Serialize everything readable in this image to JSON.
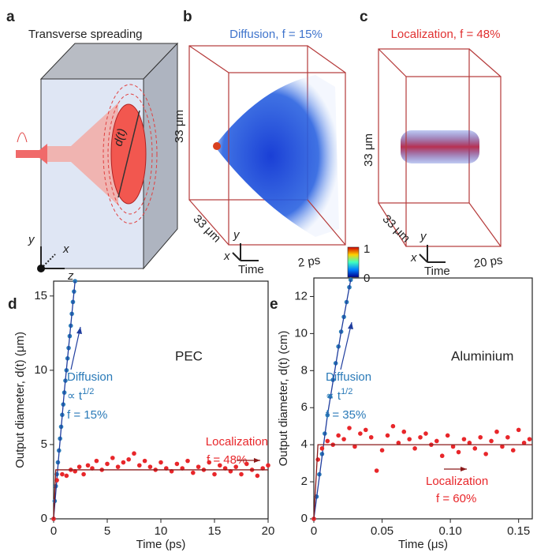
{
  "panels": {
    "a": {
      "letter": "a",
      "title": "Transverse spreading",
      "spot": "d(t)",
      "axes": [
        "y",
        "x",
        "z"
      ]
    },
    "b": {
      "letter": "b",
      "title": "Diffusion, f = 15%",
      "height": "33 μm",
      "depth": "33 μm",
      "axes": [
        "y",
        "x",
        "Time"
      ],
      "duration": "2 ps"
    },
    "c": {
      "letter": "c",
      "title": "Localization, f = 48%",
      "height": "33 μm",
      "depth": "33 μm",
      "axes": [
        "y",
        "x",
        "Time"
      ],
      "duration": "20 ps"
    },
    "colorbar": {
      "max": "1",
      "min": "0"
    }
  },
  "chart_data": [
    {
      "type": "scatter",
      "letter": "d",
      "material": "PEC",
      "xlabel": "Time (ps)",
      "ylabel": "Output diameter, d(t) (μm)",
      "xlim": [
        0,
        20
      ],
      "xticks": [
        0,
        5,
        10,
        15,
        20
      ],
      "ylim": [
        0,
        16
      ],
      "yticks": [
        0,
        5,
        10,
        15
      ],
      "series": [
        {
          "name": "Diffusion",
          "color": "#2a7ab8",
          "note": {
            "text": "∝ t",
            "sup": "1/2"
          },
          "fraction": "f = 15%",
          "x": [
            0,
            0.1,
            0.2,
            0.3,
            0.4,
            0.5,
            0.6,
            0.7,
            0.8,
            0.9,
            1.0,
            1.1,
            1.2,
            1.3,
            1.4,
            1.5,
            1.6,
            1.7,
            1.8,
            1.9,
            2.0
          ],
          "values": [
            0,
            1.2,
            2.2,
            3.0,
            3.8,
            4.6,
            5.4,
            6.2,
            7.0,
            7.7,
            8.5,
            9.3,
            10.0,
            10.8,
            11.5,
            12.3,
            13.0,
            13.8,
            14.6,
            15.3,
            16.0
          ],
          "fit_color": "#1f3d9e",
          "fit_x": [
            0,
            0.5,
            1,
            1.5,
            2
          ],
          "fit_values": [
            0,
            4.4,
            8.6,
            12.3,
            16
          ]
        },
        {
          "name": "Localization",
          "color": "#e8262a",
          "fraction": "f = 48%",
          "x": [
            0,
            0.3,
            0.8,
            1.2,
            1.6,
            2,
            2.4,
            2.8,
            3.2,
            3.6,
            4,
            4.5,
            5,
            5.5,
            6,
            6.5,
            7,
            7.5,
            8,
            8.5,
            9,
            9.5,
            10,
            10.5,
            11,
            11.5,
            12,
            12.5,
            13,
            13.5,
            14,
            14.5,
            15,
            15.5,
            16,
            16.5,
            17,
            17.5,
            18,
            18.5,
            19,
            19.5,
            20
          ],
          "values": [
            0,
            2.6,
            3.0,
            2.9,
            3.3,
            3.2,
            3.5,
            3.0,
            3.6,
            3.4,
            3.9,
            3.3,
            3.7,
            4.1,
            3.5,
            3.8,
            4.0,
            4.4,
            3.6,
            3.9,
            3.5,
            3.3,
            3.8,
            3.4,
            3.2,
            3.7,
            3.4,
            3.9,
            3.1,
            3.5,
            3.3,
            3.8,
            3.0,
            3.6,
            3.4,
            3.2,
            3.5,
            3.0,
            3.7,
            3.3,
            2.9,
            3.4,
            3.6
          ],
          "fit_color": "#8b1a1a",
          "fit_x": [
            0,
            0.2,
            20
          ],
          "fit_values": [
            0,
            3.3,
            3.3
          ]
        }
      ]
    },
    {
      "type": "scatter",
      "letter": "e",
      "material": "Aluminium",
      "xlabel": "Time (μs)",
      "ylabel": "Output diameter, d(t) (cm)",
      "xlim": [
        0,
        0.16
      ],
      "xticks": [
        0,
        0.05,
        {
          "value": 0.1,
          "label": "0.10"
        },
        0.15
      ],
      "ylim": [
        0,
        13
      ],
      "yticks": [
        0,
        2,
        4,
        6,
        8,
        10,
        12
      ],
      "series": [
        {
          "name": "Diffusion",
          "color": "#2a7ab8",
          "note": {
            "text": "∝ t",
            "sup": "1/2"
          },
          "fraction": "f = 35%",
          "x": [
            0,
            0.002,
            0.004,
            0.006,
            0.008,
            0.01,
            0.012,
            0.014,
            0.016,
            0.018,
            0.02,
            0.022,
            0.024,
            0.026,
            0.027
          ],
          "values": [
            0,
            1.2,
            2.4,
            3.5,
            4.6,
            5.6,
            6.6,
            7.5,
            8.4,
            9.3,
            10.1,
            10.9,
            11.7,
            12.5,
            12.9
          ],
          "fit_color": "#1f3d9e",
          "fit_x": [
            0,
            0.01,
            0.02,
            0.027
          ],
          "fit_values": [
            0,
            5.6,
            10.1,
            12.9
          ]
        },
        {
          "name": "Localization",
          "color": "#e8262a",
          "fraction": "f = 60%",
          "x": [
            0,
            0.003,
            0.006,
            0.01,
            0.014,
            0.018,
            0.022,
            0.026,
            0.03,
            0.034,
            0.038,
            0.042,
            0.046,
            0.05,
            0.054,
            0.058,
            0.062,
            0.066,
            0.07,
            0.074,
            0.078,
            0.082,
            0.086,
            0.09,
            0.094,
            0.098,
            0.102,
            0.106,
            0.11,
            0.114,
            0.118,
            0.122,
            0.126,
            0.13,
            0.134,
            0.138,
            0.142,
            0.146,
            0.15,
            0.154,
            0.158
          ],
          "values": [
            0,
            3.2,
            3.8,
            4.2,
            4.0,
            4.5,
            4.3,
            4.9,
            3.9,
            4.6,
            4.8,
            4.4,
            2.6,
            3.7,
            4.5,
            5.0,
            4.1,
            4.7,
            4.3,
            3.8,
            4.4,
            4.6,
            4.0,
            4.2,
            3.4,
            4.5,
            3.9,
            3.6,
            4.3,
            4.1,
            3.8,
            4.4,
            3.5,
            4.2,
            4.7,
            3.9,
            4.4,
            3.7,
            4.8,
            4.1,
            4.3
          ],
          "fit_color": "#8b1a1a",
          "fit_x": [
            0,
            0.003,
            0.16
          ],
          "fit_values": [
            0,
            4,
            4
          ]
        }
      ]
    }
  ]
}
